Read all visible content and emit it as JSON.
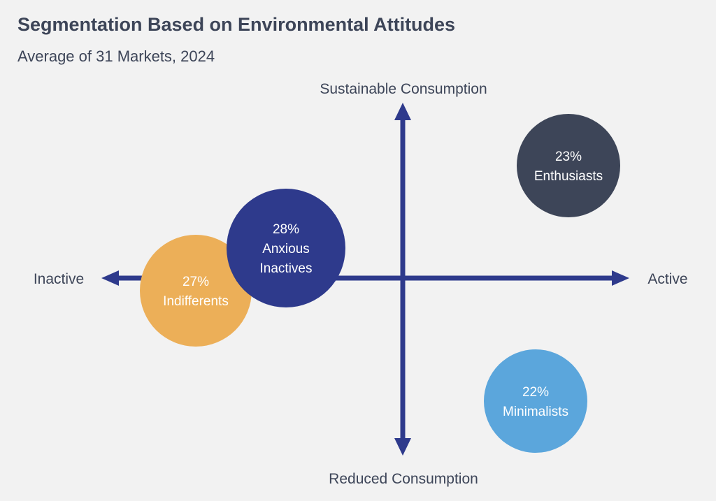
{
  "header": {
    "title": "Segmentation Based on Environmental Attitudes",
    "subtitle": "Average of 31 Markets, 2024"
  },
  "axes": {
    "top": "Sustainable Consumption",
    "bottom": "Reduced Consumption",
    "left": "Inactive",
    "right": "Active",
    "color": "#2e3a8c"
  },
  "segments": [
    {
      "id": "indifferents",
      "pct": "27%",
      "label_lines": [
        "Indifferents"
      ],
      "value": 27,
      "color": "#ecaf58"
    },
    {
      "id": "anxious-inactives",
      "pct": "28%",
      "label_lines": [
        "Anxious",
        "Inactives"
      ],
      "value": 28,
      "color": "#2e3a8c"
    },
    {
      "id": "enthusiasts",
      "pct": "23%",
      "label_lines": [
        "Enthusiasts"
      ],
      "value": 23,
      "color": "#3d4558"
    },
    {
      "id": "minimalists",
      "pct": "22%",
      "label_lines": [
        "Minimalists"
      ],
      "value": 22,
      "color": "#5ba6dc"
    }
  ]
}
